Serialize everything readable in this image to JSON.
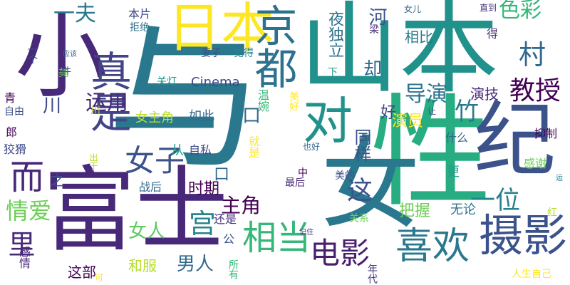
{
  "words": [
    {
      "text": "与",
      "color": "#2a788e"
    },
    {
      "text": "性",
      "color": "#27ad81"
    },
    {
      "text": "女",
      "color": "#2a788e"
    },
    {
      "text": "山本",
      "color": "#21918c"
    },
    {
      "text": "富士",
      "color": "#482878"
    },
    {
      "text": "纪",
      "color": "#3b528b"
    },
    {
      "text": "小",
      "color": "#482878"
    },
    {
      "text": "日本",
      "color": "#fde725"
    },
    {
      "text": "京都",
      "color": "#2c728e"
    },
    {
      "text": "对",
      "color": "#21918c"
    },
    {
      "text": "摄影",
      "color": "#3b528b"
    },
    {
      "text": "真是",
      "color": "#414487"
    },
    {
      "text": "喜欢",
      "color": "#2a788e"
    },
    {
      "text": "相当",
      "color": "#35b779"
    },
    {
      "text": "电影",
      "color": "#481f70"
    },
    {
      "text": "女子",
      "color": "#3b528b"
    },
    {
      "text": "村",
      "color": "#31688e"
    },
    {
      "text": "而",
      "color": "#482878"
    },
    {
      "text": "一夫",
      "color": "#2a788e"
    },
    {
      "text": "教授",
      "color": "#440154"
    },
    {
      "text": "一位",
      "color": "#26828e"
    },
    {
      "text": "色彩",
      "color": "#35b779"
    },
    {
      "text": "里",
      "color": "#482878"
    },
    {
      "text": "宫",
      "color": "#26828e"
    },
    {
      "text": "情爱",
      "color": "#6ece58"
    },
    {
      "text": "导演",
      "color": "#2c728e"
    },
    {
      "text": "竹",
      "color": "#2a788e"
    },
    {
      "text": "运用",
      "color": "#482878"
    },
    {
      "text": "主角",
      "color": "#440154"
    },
    {
      "text": "男人",
      "color": "#31688e"
    },
    {
      "text": "这",
      "color": "#3b528b"
    },
    {
      "text": "口",
      "color": "#31688e"
    },
    {
      "text": "口",
      "color": "#31688e"
    },
    {
      "text": "河",
      "color": "#3b528b"
    },
    {
      "text": "夜独立",
      "color": "#2c728e"
    },
    {
      "text": "却",
      "color": "#31688e"
    },
    {
      "text": "同样",
      "color": "#3b528b"
    },
    {
      "text": "演技",
      "color": "#482878"
    },
    {
      "text": "相比",
      "color": "#2a788e"
    },
    {
      "text": "女人",
      "color": "#5ec962"
    },
    {
      "text": "好",
      "color": "#3e4989"
    },
    {
      "text": "川",
      "color": "#3e4989"
    },
    {
      "text": "演员",
      "color": "#fde725"
    },
    {
      "text": "时期",
      "color": "#440154"
    },
    {
      "text": "把握",
      "color": "#6ece58"
    },
    {
      "text": "Cinema",
      "color": "#3e4989"
    },
    {
      "text": "如此",
      "color": "#31688e"
    },
    {
      "text": "女主角",
      "color": "#b5de2b"
    },
    {
      "text": "温婉",
      "color": "#35b779"
    },
    {
      "text": "战后",
      "color": "#31688e"
    },
    {
      "text": "之",
      "color": "#3b528b"
    },
    {
      "text": "从",
      "color": "#1f9e89"
    },
    {
      "text": "自私",
      "color": "#3e4989"
    },
    {
      "text": "就是",
      "color": "#fde725"
    },
    {
      "text": "这部",
      "color": "#440154"
    },
    {
      "text": "和服",
      "color": "#b5de2b"
    },
    {
      "text": "还是",
      "color": "#46337e"
    },
    {
      "text": "无论",
      "color": "#2c728e"
    },
    {
      "text": "更",
      "color": "#1f9e89"
    },
    {
      "text": "什么",
      "color": "#31688e"
    },
    {
      "text": "抑制",
      "color": "#440154"
    },
    {
      "text": "感谢",
      "color": "#6ece58"
    },
    {
      "text": "本片",
      "color": "#3e4989"
    },
    {
      "text": "拒绝",
      "color": "#2c728e"
    },
    {
      "text": "妻子",
      "color": "#3b528b"
    },
    {
      "text": "觉得",
      "color": "#26828e"
    },
    {
      "text": "关灯",
      "color": "#21918c"
    },
    {
      "text": "美好",
      "color": "#fde725"
    },
    {
      "text": "年代",
      "color": "#46337e"
    },
    {
      "text": "关系",
      "color": "#6ece58"
    },
    {
      "text": "美的",
      "color": "#3b528b"
    },
    {
      "text": "最后",
      "color": "#482878"
    },
    {
      "text": "中",
      "color": "#440154"
    },
    {
      "text": "也好",
      "color": "#31688e"
    },
    {
      "text": "记住",
      "color": "#46337e"
    },
    {
      "text": "人生自己",
      "color": "#fde725"
    },
    {
      "text": "红",
      "color": "#b5de2b"
    },
    {
      "text": "运",
      "color": "#26828e"
    },
    {
      "text": "可",
      "color": "#fde725"
    },
    {
      "text": "所有",
      "color": "#35b779"
    },
    {
      "text": "公",
      "color": "#3b528b"
    },
    {
      "text": "感情",
      "color": "#482878"
    },
    {
      "text": "狡猾",
      "color": "#3e4989"
    },
    {
      "text": "郎",
      "color": "#440154"
    },
    {
      "text": "自由",
      "color": "#3b528b"
    },
    {
      "text": "青",
      "color": "#440154"
    },
    {
      "text": "美",
      "color": "#6ece58"
    },
    {
      "text": "件",
      "color": "#3e4989"
    },
    {
      "text": "一个",
      "color": "#3e4989"
    },
    {
      "text": "应该",
      "color": "#31688e"
    },
    {
      "text": "下",
      "color": "#1f9e89"
    },
    {
      "text": "梁",
      "color": "#482878"
    },
    {
      "text": "女儿",
      "color": "#31688e"
    },
    {
      "text": "直到",
      "color": "#46337e"
    },
    {
      "text": "得",
      "color": "#482878"
    },
    {
      "text": "让",
      "color": "#3e4989"
    },
    {
      "text": "出于",
      "color": "#b5de2b"
    },
    {
      "text": "川",
      "color": "#b5de2b"
    }
  ]
}
